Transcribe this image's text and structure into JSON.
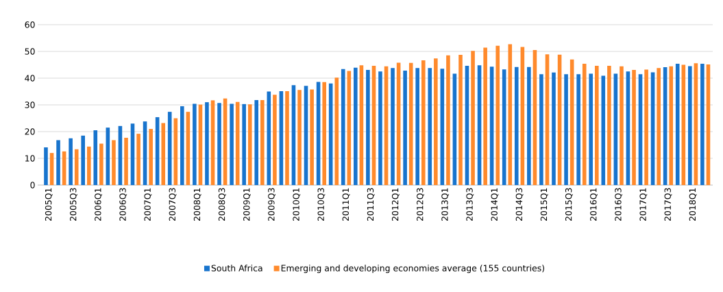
{
  "chart_data": {
    "type": "bar",
    "categories": [
      "2005Q1",
      null,
      "2005Q3",
      null,
      "2006Q1",
      null,
      "2006Q3",
      null,
      "2007Q1",
      null,
      "2007Q3",
      null,
      "2008Q1",
      null,
      "2008Q3",
      null,
      "2009Q1",
      null,
      "2009Q3",
      null,
      "2010Q1",
      null,
      "2010Q3",
      null,
      "2011Q1",
      null,
      "2011Q3",
      null,
      "2012Q1",
      null,
      "2012Q3",
      null,
      "2013Q1",
      null,
      "2013Q3",
      null,
      "2014Q1",
      null,
      "2014Q3",
      null,
      "2015Q1",
      null,
      "2015Q3",
      null,
      "2016Q1",
      null,
      "2016Q3",
      null,
      "2017Q1",
      null,
      "2017Q3",
      null,
      "2018Q1",
      null
    ],
    "series": [
      {
        "name": "South Africa",
        "color": "#1874cd",
        "values": [
          14.1,
          16.8,
          17.5,
          18.5,
          20.5,
          21.5,
          22.1,
          23.0,
          23.8,
          25.4,
          27.4,
          29.5,
          30.4,
          31.0,
          30.7,
          30.4,
          30.3,
          31.8,
          35.0,
          35.1,
          37.4,
          37.1,
          38.6,
          38.0,
          43.4,
          43.9,
          43.1,
          42.5,
          43.8,
          42.8,
          43.8,
          43.8,
          43.5,
          41.7,
          44.6,
          44.8,
          44.3,
          43.3,
          44.2,
          44.2,
          41.5,
          42.1,
          41.5,
          41.5,
          41.7,
          40.9,
          41.7,
          42.5,
          41.5,
          42.2,
          44.1,
          45.4,
          44.5,
          45.4
        ]
      },
      {
        "name": "Emerging and developing economies average (155 countries)",
        "color": "#ff8a2c",
        "values": [
          12.0,
          12.6,
          13.4,
          14.4,
          15.5,
          16.8,
          17.7,
          19.2,
          21.0,
          23.2,
          25.0,
          27.4,
          30.1,
          31.7,
          32.4,
          31.1,
          30.2,
          31.8,
          33.8,
          35.1,
          35.6,
          35.8,
          38.5,
          40.2,
          42.7,
          44.8,
          44.6,
          44.4,
          45.8,
          45.7,
          46.7,
          47.4,
          48.5,
          48.7,
          50.2,
          51.4,
          52.1,
          52.7,
          51.7,
          50.5,
          48.9,
          48.8,
          47.0,
          45.4,
          44.6,
          44.6,
          44.4,
          43.1,
          43.2,
          43.8,
          44.4,
          45.0,
          45.6,
          45.1
        ]
      }
    ],
    "ylim": [
      0,
      60
    ],
    "yticks": [
      0,
      10,
      20,
      30,
      40,
      50,
      60
    ],
    "grid": "y",
    "legend": "bottom"
  }
}
